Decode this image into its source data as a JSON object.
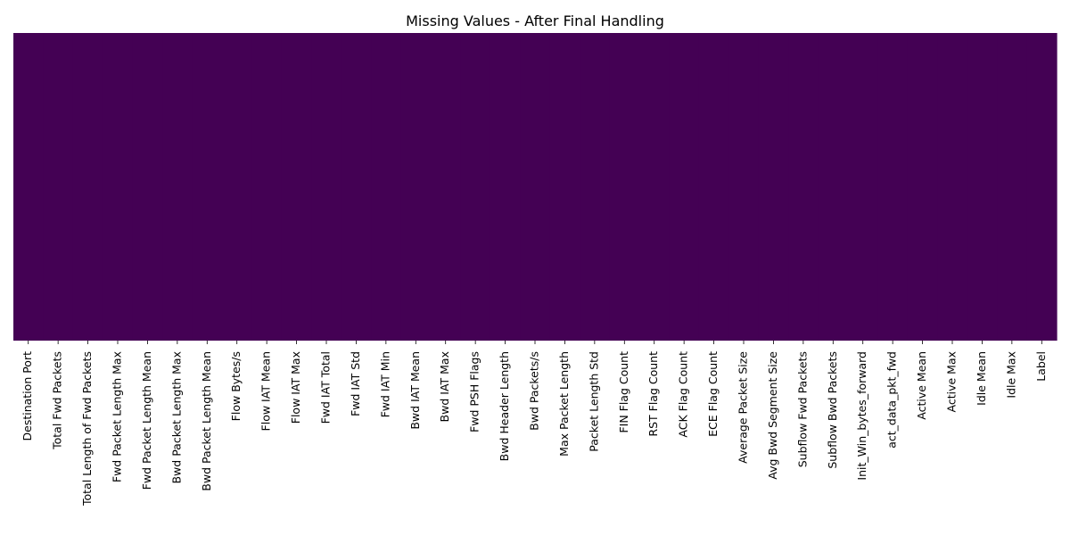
{
  "chart_data": {
    "type": "heatmap",
    "title": "Missing Values - After Final Handling",
    "xlabel": "",
    "ylabel": "",
    "colormap": "viridis",
    "missing_color": "#fde725",
    "present_color": "#440154",
    "grid": false,
    "colorbar": false,
    "categories": [
      "Destination Port",
      "Total Fwd Packets",
      "Total Length of Fwd Packets",
      "Fwd Packet Length Max",
      "Fwd Packet Length Mean",
      "Bwd Packet Length Max",
      "Bwd Packet Length Mean",
      "Flow Bytes/s",
      "Flow IAT Mean",
      "Flow IAT Max",
      "Fwd IAT Total",
      "Fwd IAT Std",
      "Fwd IAT Min",
      "Bwd IAT Mean",
      "Bwd IAT Max",
      "Fwd PSH Flags",
      "Bwd Header Length",
      "Bwd Packets/s",
      "Max Packet Length",
      "Packet Length Std",
      "FIN Flag Count",
      "RST Flag Count",
      "ACK Flag Count",
      "ECE Flag Count",
      "Average Packet Size",
      "Avg Bwd Segment Size",
      "Subflow Fwd Packets",
      "Subflow Bwd Packets",
      "Init_Win_bytes_forward",
      "act_data_pkt_fwd",
      "Active Mean",
      "Active Max",
      "Idle Mean",
      "Idle Max",
      "Label"
    ],
    "missing_counts": [
      0,
      0,
      0,
      0,
      0,
      0,
      0,
      0,
      0,
      0,
      0,
      0,
      0,
      0,
      0,
      0,
      0,
      0,
      0,
      0,
      0,
      0,
      0,
      0,
      0,
      0,
      0,
      0,
      0,
      0,
      0,
      0,
      0,
      0,
      0
    ]
  }
}
